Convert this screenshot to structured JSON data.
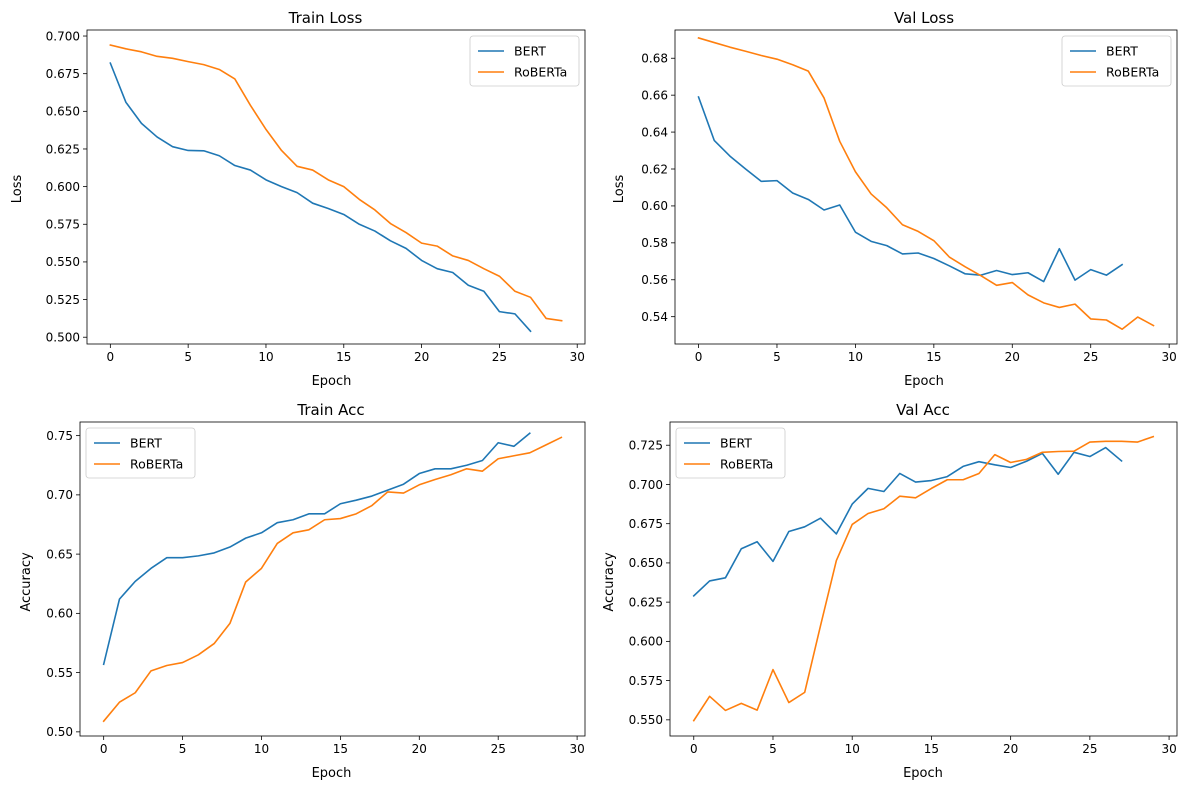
{
  "colors": {
    "bert": "#1f77b4",
    "roberta": "#ff7f0e"
  },
  "chart_data": [
    {
      "type": "line",
      "title": "Train Loss",
      "xlabel": "Epoch",
      "ylabel": "Loss",
      "xlim": [
        -1.5,
        30.5
      ],
      "ylim": [
        0.4955,
        0.704
      ],
      "xticks": [
        0,
        5,
        10,
        15,
        20,
        25,
        30
      ],
      "yticks": [
        0.5,
        0.525,
        0.55,
        0.575,
        0.6,
        0.625,
        0.65,
        0.675,
        0.7
      ],
      "ytick_decimals": 3,
      "legend": "top-right",
      "series": [
        {
          "name": "BERT",
          "color": "bert",
          "values": [
            0.682,
            0.656,
            0.642,
            0.633,
            0.6265,
            0.624,
            0.6238,
            0.6205,
            0.614,
            0.611,
            0.6045,
            0.6,
            0.596,
            0.589,
            0.5855,
            0.5815,
            0.575,
            0.5705,
            0.564,
            0.559,
            0.551,
            0.5455,
            0.543,
            0.5345,
            0.5305,
            0.517,
            0.5155,
            0.504
          ]
        },
        {
          "name": "RoBERTa",
          "color": "roberta",
          "values": [
            0.694,
            0.6915,
            0.6895,
            0.6865,
            0.6852,
            0.683,
            0.681,
            0.6778,
            0.6715,
            0.654,
            0.638,
            0.624,
            0.6135,
            0.611,
            0.6045,
            0.6,
            0.5915,
            0.5845,
            0.5755,
            0.5695,
            0.5625,
            0.5605,
            0.554,
            0.551,
            0.5455,
            0.5405,
            0.5305,
            0.5265,
            0.5125,
            0.511
          ]
        }
      ]
    },
    {
      "type": "line",
      "title": "Val Loss",
      "xlabel": "Epoch",
      "ylabel": "Loss",
      "xlim": [
        -1.5,
        30.5
      ],
      "ylim": [
        0.5252,
        0.6953
      ],
      "xticks": [
        0,
        5,
        10,
        15,
        20,
        25,
        30
      ],
      "yticks": [
        0.54,
        0.56,
        0.58,
        0.6,
        0.62,
        0.64,
        0.66,
        0.68
      ],
      "ytick_decimals": 2,
      "legend": "top-right",
      "series": [
        {
          "name": "BERT",
          "color": "bert",
          "values": [
            0.659,
            0.6355,
            0.627,
            0.62,
            0.6133,
            0.6137,
            0.607,
            0.6035,
            0.5978,
            0.6005,
            0.5858,
            0.5808,
            0.5785,
            0.574,
            0.5745,
            0.5715,
            0.5675,
            0.5632,
            0.5625,
            0.565,
            0.5628,
            0.5638,
            0.559,
            0.5768,
            0.5598,
            0.5655,
            0.5625,
            0.5682
          ]
        },
        {
          "name": "RoBERTa",
          "color": "roberta",
          "values": [
            0.691,
            0.6885,
            0.686,
            0.6838,
            0.6815,
            0.6795,
            0.6765,
            0.673,
            0.6585,
            0.635,
            0.6185,
            0.6065,
            0.599,
            0.5898,
            0.5862,
            0.5812,
            0.5722,
            0.567,
            0.5622,
            0.557,
            0.5585,
            0.5518,
            0.5475,
            0.545,
            0.5468,
            0.5388,
            0.5382,
            0.5332,
            0.5398,
            0.5352
          ]
        }
      ]
    },
    {
      "type": "line",
      "title": "Train Acc",
      "xlabel": "Epoch",
      "ylabel": "Accuracy",
      "xlim": [
        -1.5,
        30.5
      ],
      "ylim": [
        0.4965,
        0.7615
      ],
      "xticks": [
        0,
        5,
        10,
        15,
        20,
        25,
        30
      ],
      "yticks": [
        0.5,
        0.55,
        0.6,
        0.65,
        0.7,
        0.75
      ],
      "ytick_decimals": 2,
      "legend": "top-left",
      "series": [
        {
          "name": "BERT",
          "color": "bert",
          "values": [
            0.557,
            0.612,
            0.627,
            0.638,
            0.647,
            0.647,
            0.6485,
            0.651,
            0.656,
            0.6635,
            0.668,
            0.6765,
            0.679,
            0.684,
            0.684,
            0.6925,
            0.6955,
            0.699,
            0.704,
            0.709,
            0.718,
            0.722,
            0.722,
            0.725,
            0.729,
            0.744,
            0.741,
            0.752
          ]
        },
        {
          "name": "RoBERTa",
          "color": "roberta",
          "values": [
            0.509,
            0.525,
            0.533,
            0.5515,
            0.556,
            0.5585,
            0.565,
            0.5745,
            0.5915,
            0.6265,
            0.638,
            0.659,
            0.668,
            0.6705,
            0.679,
            0.68,
            0.684,
            0.691,
            0.7025,
            0.7015,
            0.7085,
            0.713,
            0.717,
            0.722,
            0.72,
            0.7305,
            0.733,
            0.7355,
            0.742,
            0.7485
          ]
        }
      ]
    },
    {
      "type": "line",
      "title": "Val Acc",
      "xlabel": "Epoch",
      "ylabel": "Accuracy",
      "xlim": [
        -1.5,
        30.5
      ],
      "ylim": [
        0.5397,
        0.7398
      ],
      "xticks": [
        0,
        5,
        10,
        15,
        20,
        25,
        30
      ],
      "yticks": [
        0.55,
        0.575,
        0.6,
        0.625,
        0.65,
        0.675,
        0.7,
        0.725
      ],
      "ytick_decimals": 3,
      "legend": "top-left",
      "series": [
        {
          "name": "BERT",
          "color": "bert",
          "values": [
            0.629,
            0.6385,
            0.6405,
            0.659,
            0.6635,
            0.651,
            0.67,
            0.673,
            0.6785,
            0.6685,
            0.6875,
            0.6975,
            0.6955,
            0.707,
            0.7015,
            0.7025,
            0.705,
            0.7115,
            0.7145,
            0.7125,
            0.7108,
            0.7148,
            0.7198,
            0.7065,
            0.7205,
            0.7178,
            0.7235,
            0.715
          ]
        },
        {
          "name": "RoBERTa",
          "color": "roberta",
          "values": [
            0.5495,
            0.565,
            0.556,
            0.5605,
            0.5562,
            0.582,
            0.561,
            0.5675,
            0.61,
            0.6515,
            0.6745,
            0.6815,
            0.6845,
            0.6925,
            0.6915,
            0.6975,
            0.703,
            0.703,
            0.707,
            0.719,
            0.714,
            0.716,
            0.7205,
            0.721,
            0.7212,
            0.727,
            0.7275,
            0.7275,
            0.727,
            0.7305
          ]
        }
      ]
    }
  ]
}
